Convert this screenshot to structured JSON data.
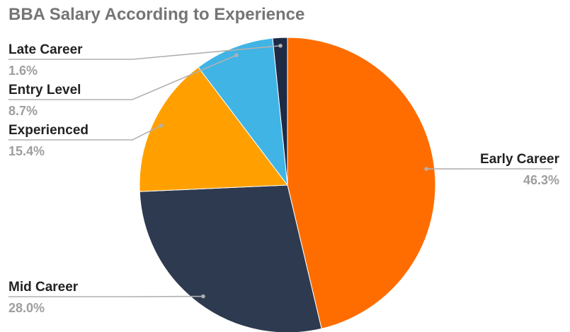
{
  "chart_data": {
    "type": "pie",
    "title": "BBA Salary According to Experience",
    "slices": [
      {
        "label": "Early Career",
        "value_text": "46.3%",
        "value": 46.3,
        "color": "#ff6d00"
      },
      {
        "label": "Mid Career",
        "value_text": "28.0%",
        "value": 28.0,
        "color": "#2e3a50"
      },
      {
        "label": "Experienced",
        "value_text": "15.4%",
        "value": 15.4,
        "color": "#ffa000"
      },
      {
        "label": "Entry Level",
        "value_text": "8.7%",
        "value": 8.7,
        "color": "#40b4e5"
      },
      {
        "label": "Late Career",
        "value_text": "1.6%",
        "value": 1.6,
        "color": "#1f2a44"
      }
    ],
    "legend": "none",
    "label_style": "leader-lines"
  }
}
